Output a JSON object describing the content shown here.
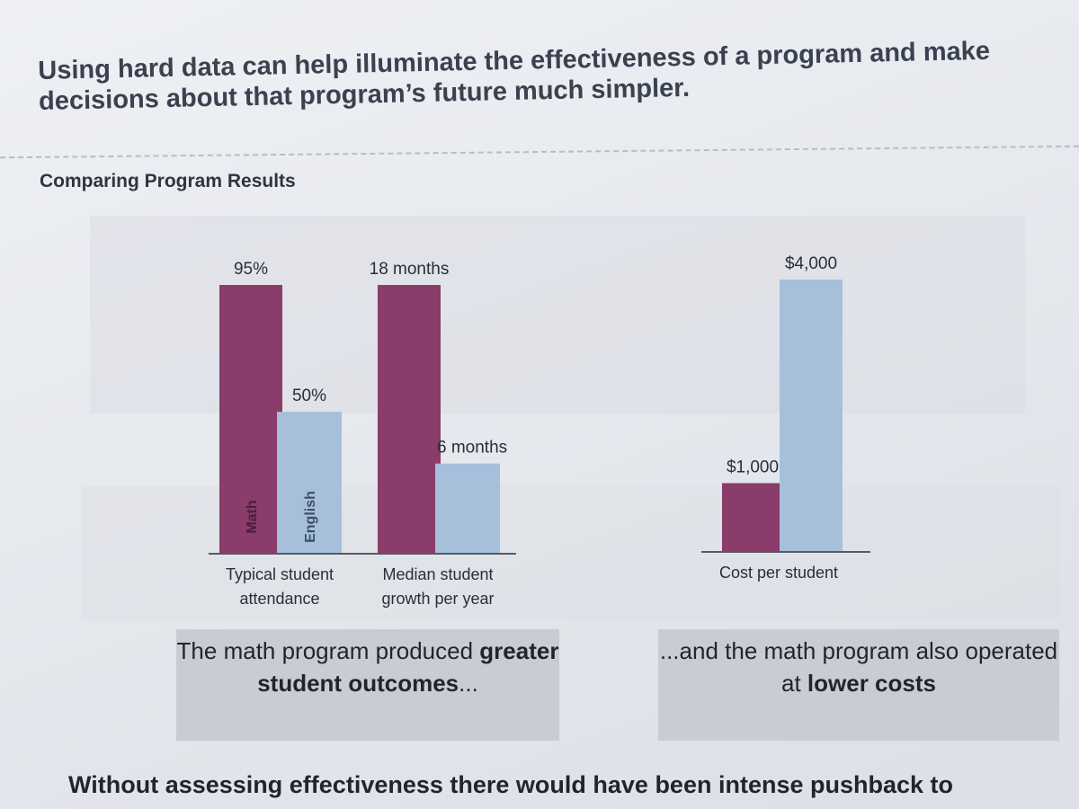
{
  "headline": "Using hard data can help illuminate the effectiveness of a program and make decisions about that program’s future much simpler.",
  "section_title": "Comparing Program Results",
  "colors": {
    "math": "#8a3c6a",
    "english": "#a6c0dc",
    "axis": "#555a63"
  },
  "chart_data": [
    {
      "type": "bar",
      "title": "",
      "series": [
        {
          "name": "Math",
          "values": [
            95,
            18
          ]
        },
        {
          "name": "English",
          "values": [
            50,
            6
          ]
        }
      ],
      "categories": [
        "Typical student attendance",
        "Median student growth per year"
      ],
      "category_lines": [
        [
          "Typical student",
          "attendance"
        ],
        [
          "Median student",
          "growth per year"
        ]
      ],
      "labels": [
        [
          "95%",
          "18 months"
        ],
        [
          "50%",
          "6 months"
        ]
      ],
      "units": [
        "%",
        "months"
      ]
    },
    {
      "type": "bar",
      "title": "",
      "series": [
        {
          "name": "Math",
          "values": [
            1000
          ]
        },
        {
          "name": "English",
          "values": [
            4000
          ]
        }
      ],
      "categories": [
        "Cost per student"
      ],
      "category_lines": [
        [
          "Cost per student"
        ]
      ],
      "labels": [
        [
          "$1,000"
        ],
        [
          "$4,000"
        ]
      ],
      "ylim": [
        0,
        4000
      ]
    }
  ],
  "callouts": {
    "left": {
      "pre": "The math program produced ",
      "bold": "greater student outcomes",
      "post": "..."
    },
    "right": {
      "pre": "...and the math program also operated at ",
      "bold": "lower costs",
      "post": ""
    }
  },
  "footer": "Without assessing effectiveness there would have been intense pushback to"
}
